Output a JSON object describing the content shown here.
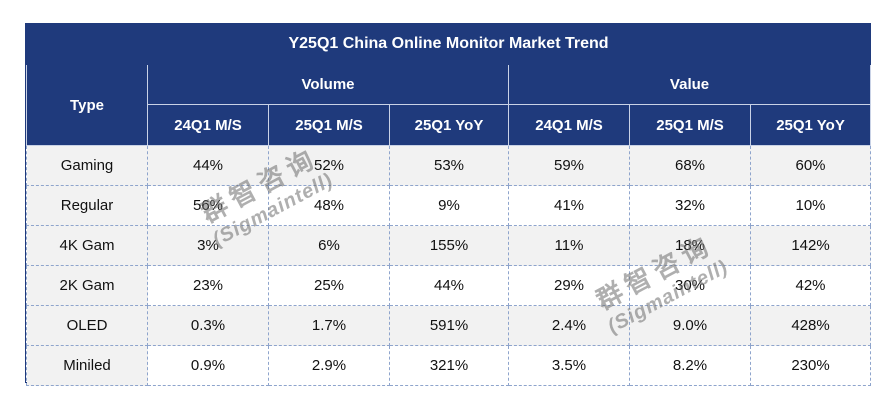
{
  "table": {
    "title": "Y25Q1  China Online Monitor Market  Trend",
    "type_header": "Type",
    "groups": [
      "Volume",
      "Value"
    ],
    "columns": [
      "24Q1 M/S",
      "25Q1 M/S",
      "25Q1 YoY",
      "24Q1 M/S",
      "25Q1 M/S",
      "25Q1 YoY"
    ],
    "rows": [
      {
        "type": "Gaming",
        "cells": [
          "44%",
          "52%",
          "53%",
          "59%",
          "68%",
          "60%"
        ]
      },
      {
        "type": "Regular",
        "cells": [
          "56%",
          "48%",
          "9%",
          "41%",
          "32%",
          "10%"
        ]
      },
      {
        "type": "4K Gam",
        "cells": [
          "3%",
          "6%",
          "155%",
          "11%",
          "18%",
          "142%"
        ]
      },
      {
        "type": "2K Gam",
        "cells": [
          "23%",
          "25%",
          "44%",
          "29%",
          "30%",
          "42%"
        ]
      },
      {
        "type": "OLED",
        "cells": [
          "0.3%",
          "1.7%",
          "591%",
          "2.4%",
          "9.0%",
          "428%"
        ]
      },
      {
        "type": "Miniled",
        "cells": [
          "0.9%",
          "2.9%",
          "321%",
          "3.5%",
          "8.2%",
          "230%"
        ]
      }
    ]
  },
  "watermarks": [
    {
      "cn": "群智咨询",
      "en": "(Sigmaintell)"
    },
    {
      "cn": "群智咨询",
      "en": "(Sigmaintell)"
    }
  ]
}
